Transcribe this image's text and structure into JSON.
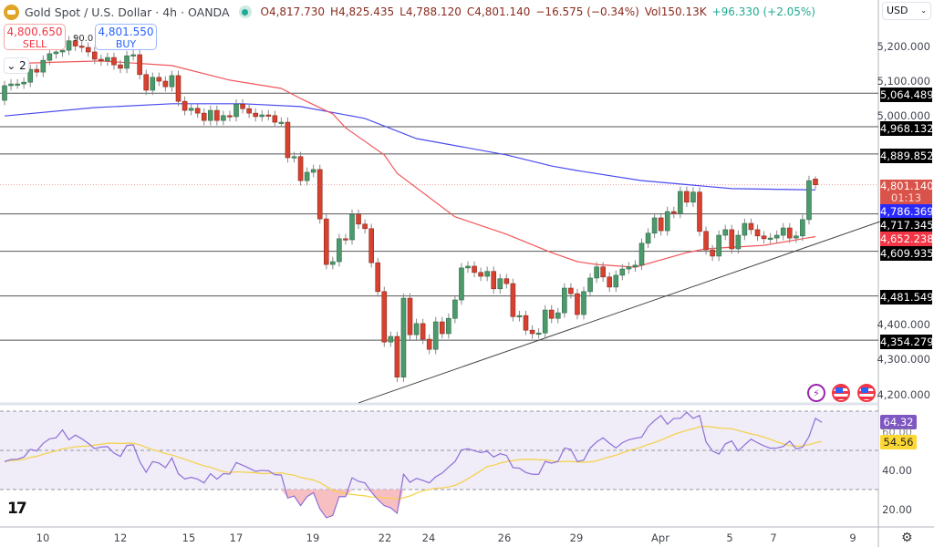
{
  "header": {
    "title": "Gold Spot / U.S. Dollar · 4h · OANDA",
    "open": "O4,817.730",
    "high": "H4,825.435",
    "low": "L4,788.120",
    "close": "C4,801.140",
    "change": "−16.575 (−0.34%)",
    "volume": "Vol150.13K",
    "extra_change": "+96.330 (+2.05%)"
  },
  "trade": {
    "sell_price": "4,800.650",
    "sell_label": "SELL",
    "buy_price": "4,801.550",
    "buy_label": "BUY",
    "partial_label": "90.0"
  },
  "collapse_label": "2",
  "currency": "USD",
  "price_axis": [
    "5,200.000",
    "5,100.000",
    "5,000.000",
    "4,400.000",
    "4,300.000",
    "4,200.000"
  ],
  "level_tags": [
    "5,064.489",
    "4,968.132",
    "4,889.852",
    "4,717.345",
    "4,609.935",
    "4,481.549",
    "4,354.279"
  ],
  "current_price": {
    "value": "4,801.140",
    "countdown": "01:13",
    "color": "#d9534a"
  },
  "ma_blue_tag": {
    "value": "4,786.369",
    "color": "#2a2aff"
  },
  "ma_red_tag": {
    "value": "4,652.238",
    "color": "#f23645"
  },
  "rsi_axis": [
    "60.00",
    "40.00",
    "20.00"
  ],
  "rsi_tag": {
    "value": "64.32",
    "color": "#7e57c2"
  },
  "rsi_ma_tag": {
    "value": "54.56",
    "color": "#fdd835"
  },
  "time_axis": [
    "10",
    "12",
    "15",
    "17",
    "19",
    "22",
    "24",
    "26",
    "29",
    "Apr",
    "5",
    "7",
    "9"
  ],
  "colors": {
    "up": "#4c9a6c",
    "down": "#d7412f",
    "ma_fast": "#f0575a",
    "ma_slow": "#4b4bf0",
    "rsi": "#8e6fd6",
    "rsi_ma": "#f5d142",
    "band": "#f0ecf8"
  },
  "chart_data": {
    "type": "candlestick",
    "symbol": "XAUUSD",
    "timeframe": "4h",
    "ylim": [
      4180,
      5260
    ],
    "first_open": 5044,
    "close": [
      5086,
      5091,
      5091,
      5096,
      5133,
      5125,
      5159,
      5178,
      5183,
      5188,
      5215,
      5200,
      5196,
      5183,
      5162,
      5157,
      5167,
      5146,
      5136,
      5172,
      5175,
      5118,
      5073,
      5110,
      5099,
      5083,
      5115,
      5041,
      5015,
      5021,
      5007,
      4986,
      5015,
      4986,
      5000,
      4997,
      5033,
      5020,
      5007,
      4997,
      5002,
      5000,
      4981,
      4981,
      4879,
      4882,
      4813,
      4837,
      4845,
      4703,
      4572,
      4580,
      4646,
      4643,
      4716,
      4688,
      4675,
      4577,
      4494,
      4349,
      4365,
      4248,
      4475,
      4370,
      4402,
      4357,
      4328,
      4407,
      4373,
      4417,
      4470,
      4562,
      4567,
      4549,
      4538,
      4552,
      4502,
      4531,
      4517,
      4422,
      4425,
      4383,
      4373,
      4375,
      4441,
      4417,
      4433,
      4504,
      4488,
      4428,
      4494,
      4533,
      4565,
      4536,
      4507,
      4541,
      4559,
      4565,
      4570,
      4633,
      4662,
      4706,
      4669,
      4724,
      4719,
      4782,
      4751,
      4780,
      4667,
      4614,
      4596,
      4656,
      4672,
      4617,
      4656,
      4690,
      4672,
      4654,
      4646,
      4648,
      4656,
      4677,
      4648,
      4654,
      4701,
      4813,
      4801.14
    ],
    "last_candle": {
      "open": 4817.73,
      "high": 4825.435,
      "low": 4788.12,
      "close": 4801.14
    },
    "ma_fast_anchors": [
      [
        0,
        5149
      ],
      [
        9,
        5154
      ],
      [
        15,
        5157
      ],
      [
        26,
        5144
      ],
      [
        35,
        5102
      ],
      [
        43,
        5078
      ],
      [
        46,
        5049
      ],
      [
        51,
        5005
      ],
      [
        53,
        4965
      ],
      [
        59,
        4887
      ],
      [
        61,
        4834
      ],
      [
        70,
        4709
      ],
      [
        78,
        4659
      ],
      [
        85,
        4606
      ],
      [
        89,
        4580
      ],
      [
        92,
        4572
      ],
      [
        98,
        4564
      ],
      [
        106,
        4606
      ],
      [
        109,
        4617
      ],
      [
        118,
        4627
      ],
      [
        126,
        4652.238
      ]
    ],
    "ma_slow_anchors": [
      [
        0,
        4999
      ],
      [
        14,
        5023
      ],
      [
        26,
        5034
      ],
      [
        37,
        5034
      ],
      [
        46,
        5026
      ],
      [
        56,
        4992
      ],
      [
        64,
        4934
      ],
      [
        78,
        4887
      ],
      [
        85,
        4855
      ],
      [
        89,
        4842
      ],
      [
        99,
        4813
      ],
      [
        113,
        4790
      ],
      [
        126,
        4786.369
      ]
    ],
    "horizontal_levels": [
      5064.489,
      4968.132,
      4889.852,
      4717.345,
      4609.935,
      4481.549,
      4354.279
    ],
    "trendline": [
      [
        55,
        4174
      ],
      [
        136,
        4695
      ]
    ],
    "rsi": {
      "levels": [
        70,
        50,
        30
      ],
      "ylim": [
        10,
        78
      ],
      "values": [
        44.3,
        45.3,
        45.5,
        46.6,
        50.5,
        49.7,
        53.6,
        55.9,
        56.4,
        60.4,
        55.4,
        57.8,
        55.9,
        53.6,
        50.9,
        51.7,
        51.9,
        48.6,
        46.9,
        52.5,
        52.8,
        44.3,
        38.8,
        44.3,
        43.5,
        41.2,
        46.1,
        38.1,
        35.4,
        36.2,
        35.3,
        33.4,
        38.1,
        35.3,
        38.1,
        37.9,
        43.8,
        42.4,
        40.9,
        39.3,
        39.8,
        39.6,
        37.6,
        37.4,
        25.7,
        26.7,
        21.8,
        26.4,
        28.4,
        20.2,
        15.6,
        16.8,
        26.4,
        26.4,
        36.0,
        34.2,
        33.4,
        28.8,
        24.9,
        21.8,
        20.7,
        17.9,
        37.8,
        33.7,
        35.7,
        34.7,
        33.4,
        36.5,
        38.4,
        41.5,
        44.3,
        50.2,
        50.8,
        49.8,
        48.9,
        49.5,
        46.6,
        48.3,
        47.4,
        41.2,
        40.9,
        38.7,
        37.8,
        37.8,
        44.3,
        43.5,
        44.3,
        51.2,
        50.5,
        44.3,
        45.0,
        51.2,
        54.3,
        56.4,
        53.6,
        51.2,
        53.9,
        55.4,
        56.2,
        56.7,
        62.1,
        65.2,
        67.8,
        63.3,
        66.3,
        66.3,
        69.4,
        66.3,
        67.8,
        54.3,
        49.7,
        48.1,
        53.3,
        54.8,
        49.7,
        52.8,
        55.7,
        53.9,
        52.3,
        51.1,
        51.2,
        52.0,
        54.7,
        50.8,
        51.6,
        57.0,
        66.3,
        64.32
      ],
      "ma_last": 54.56
    }
  }
}
